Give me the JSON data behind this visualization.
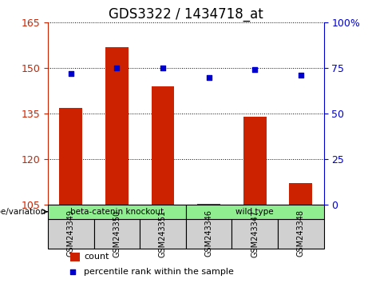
{
  "title": "GDS3322 / 1434718_at",
  "samples": [
    "GSM243349",
    "GSM243350",
    "GSM243351",
    "GSM243346",
    "GSM243347",
    "GSM243348"
  ],
  "counts": [
    137.0,
    157.0,
    144.0,
    105.2,
    134.0,
    112.0
  ],
  "percentile_ranks": [
    72,
    75,
    75,
    70,
    74,
    71
  ],
  "ylim_left": [
    105,
    165
  ],
  "yticks_left": [
    105,
    120,
    135,
    150,
    165
  ],
  "ylim_right": [
    0,
    100
  ],
  "yticks_right": [
    0,
    25,
    50,
    75,
    100
  ],
  "bar_color": "#cc2200",
  "dot_color": "#0000cc",
  "bar_width": 0.5,
  "groups": [
    {
      "label": "beta-catenin knockout",
      "indices": [
        0,
        1,
        2
      ],
      "color": "#90ee90"
    },
    {
      "label": "wild type",
      "indices": [
        3,
        4,
        5
      ],
      "color": "#90ee90"
    }
  ],
  "group_row_color": "#c8c8c8",
  "xlabel_row_color": "#d0d0d0",
  "grid_color": "#000000",
  "background_color": "#ffffff",
  "plot_bg_color": "#ffffff",
  "genotype_label": "genotype/variation",
  "legend_count_label": "count",
  "legend_pct_label": "percentile rank within the sample",
  "left_tick_color": "#cc2200",
  "right_tick_color": "#0000cc",
  "title_fontsize": 12,
  "tick_fontsize": 9,
  "label_fontsize": 9
}
